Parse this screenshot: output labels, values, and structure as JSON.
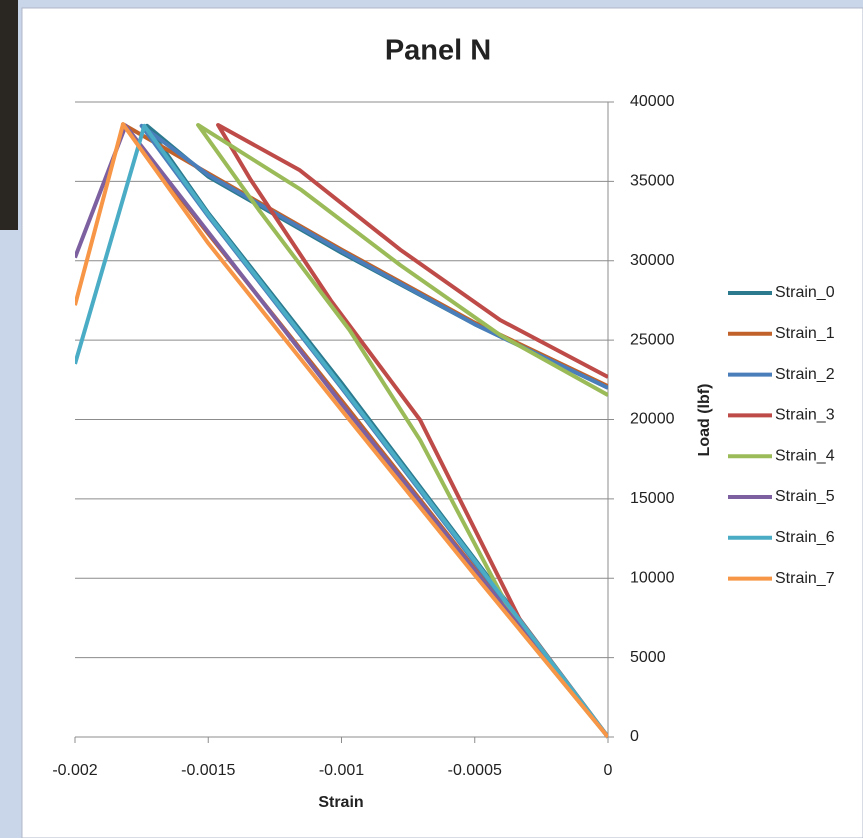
{
  "chart_data": {
    "type": "line",
    "title": "Panel N",
    "x_label": "Strain",
    "y_label": "Load (lbf)",
    "xlim": [
      -0.002,
      0
    ],
    "xticks": [
      -0.002,
      -0.0015,
      -0.001,
      -0.0005,
      0
    ],
    "ylim": [
      0,
      40000
    ],
    "yticks": [
      0,
      5000,
      10000,
      15000,
      20000,
      25000,
      30000,
      35000,
      40000
    ],
    "y_axis_position": "right",
    "grid": true,
    "legend": "right",
    "series": [
      {
        "name": "Strain_0",
        "color": "#2b7a8e",
        "x": [
          0,
          -0.0005,
          -0.001,
          -0.0015,
          -0.00173,
          -0.0015,
          -0.001,
          -0.0005,
          0
        ],
        "values": [
          0,
          11200,
          22300,
          33000,
          38500,
          35300,
          30500,
          26000,
          22000
        ]
      },
      {
        "name": "Strain_1",
        "color": "#c0622a",
        "x": [
          0,
          -0.0005,
          -0.001,
          -0.0015,
          -0.00182,
          -0.0015,
          -0.001,
          -0.0005,
          0
        ],
        "values": [
          0,
          10600,
          21200,
          31700,
          38600,
          35500,
          30700,
          26100,
          22100
        ]
      },
      {
        "name": "Strain_2",
        "color": "#4a7ebb",
        "x": [
          0,
          -0.0005,
          -0.001,
          -0.0015,
          -0.00175,
          -0.0015,
          -0.001,
          -0.0005,
          0
        ],
        "values": [
          0,
          11000,
          22000,
          32800,
          38500,
          35400,
          30600,
          26000,
          22000
        ]
      },
      {
        "name": "Strain_3",
        "color": "#be4b48",
        "x": [
          0,
          -0.00033,
          -0.000705,
          -0.00104,
          -0.00134,
          -0.001463,
          -0.001156,
          -0.00078,
          -0.000405,
          0
        ],
        "values": [
          0,
          7370,
          19970,
          27500,
          35080,
          38550,
          35700,
          30700,
          26270,
          22680
        ]
      },
      {
        "name": "Strain_4",
        "color": "#9bbb59",
        "x": [
          0,
          -0.00033,
          -0.000705,
          -0.00097,
          -0.00131,
          -0.001538,
          -0.00115,
          -0.00078,
          -0.000405,
          0
        ],
        "values": [
          0,
          6740,
          18700,
          25640,
          33200,
          38550,
          34450,
          29730,
          25320,
          21540
        ]
      },
      {
        "name": "Strain_5",
        "color": "#7d60a0",
        "x": [
          0,
          -0.0005,
          -0.001,
          -0.0015,
          -0.00181,
          -0.002
        ],
        "values": [
          0,
          10500,
          21000,
          31800,
          38500,
          30200
        ]
      },
      {
        "name": "Strain_6",
        "color": "#4bacc6",
        "x": [
          0,
          -0.0005,
          -0.001,
          -0.0015,
          -0.00174,
          -0.002
        ],
        "values": [
          0,
          11100,
          22100,
          32900,
          38500,
          23500
        ]
      },
      {
        "name": "Strain_7",
        "color": "#f79646",
        "x": [
          0,
          -0.0005,
          -0.001,
          -0.0015,
          -0.00182,
          -0.002
        ],
        "values": [
          0,
          10200,
          20600,
          31100,
          38600,
          27200
        ]
      }
    ]
  }
}
